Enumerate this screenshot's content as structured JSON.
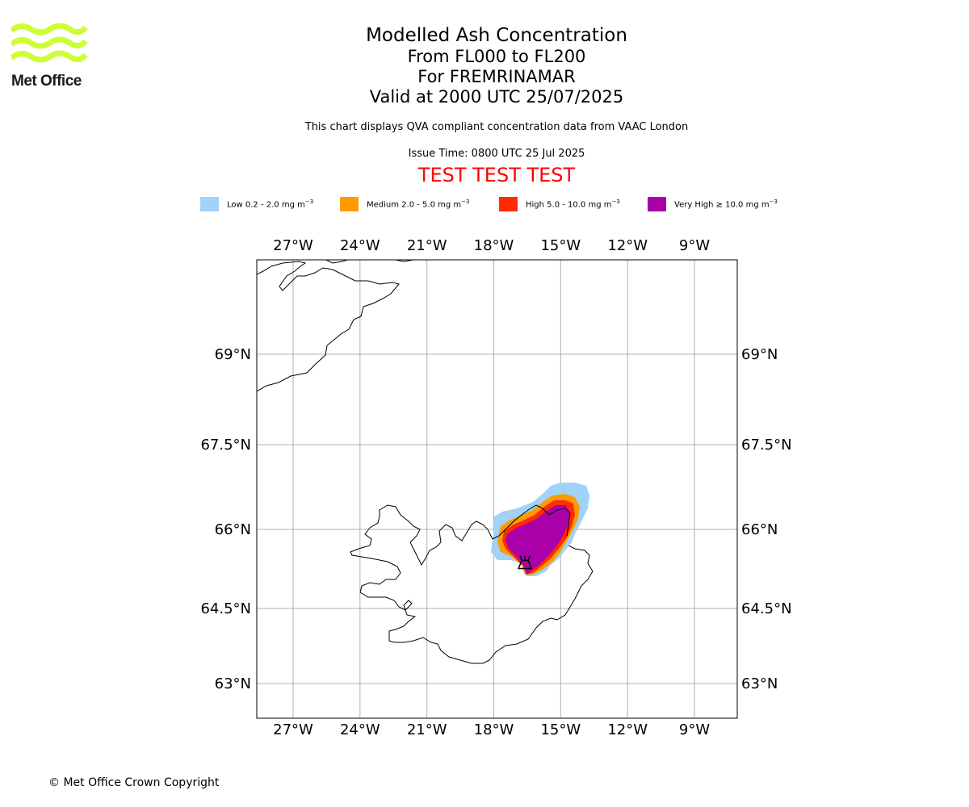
{
  "logo": {
    "text": "Met Office",
    "color": "#ccff33"
  },
  "titles": {
    "main": "Modelled Ash Concentration",
    "levels": "From FL000 to FL200",
    "volcano": "For FREMRINAMAR",
    "valid": "Valid at 2000 UTC 25/07/2025",
    "note": "This chart displays QVA compliant concentration data from VAAC London",
    "issue": "Issue Time: 0800 UTC 25 Jul 2025",
    "test": "TEST TEST TEST"
  },
  "legend": [
    {
      "label": "Low 0.2 - 2.0 mg m",
      "color": "#a0d2fa"
    },
    {
      "label": "Medium 2.0 - 5.0 mg m",
      "color": "#ff9a00"
    },
    {
      "label": "High 5.0 - 10.0 mg m",
      "color": "#ff2a00"
    },
    {
      "label": "Very High ≥ 10.0 mg m",
      "color": "#aa00aa"
    }
  ],
  "legend_unit_exponent": "−3",
  "map": {
    "lon_range": [
      -28.6,
      -7.0
    ],
    "lat_range": [
      62.2,
      70.6
    ],
    "lon_ticks": [
      "27°W",
      "24°W",
      "21°W",
      "18°W",
      "15°W",
      "12°W",
      "9°W"
    ],
    "lon_values": [
      -27,
      -24,
      -21,
      -18,
      -15,
      -12,
      -9
    ],
    "lat_ticks": [
      "69°N",
      "67.5°N",
      "66°N",
      "64.5°N",
      "63°N"
    ],
    "lat_values": [
      69,
      67.5,
      66,
      64.5,
      63
    ],
    "grid": true,
    "volcano_marker": {
      "name": "volcano-icon",
      "lon": -16.6,
      "lat": 65.38
    }
  },
  "copyright": "© Met Office Crown Copyright"
}
